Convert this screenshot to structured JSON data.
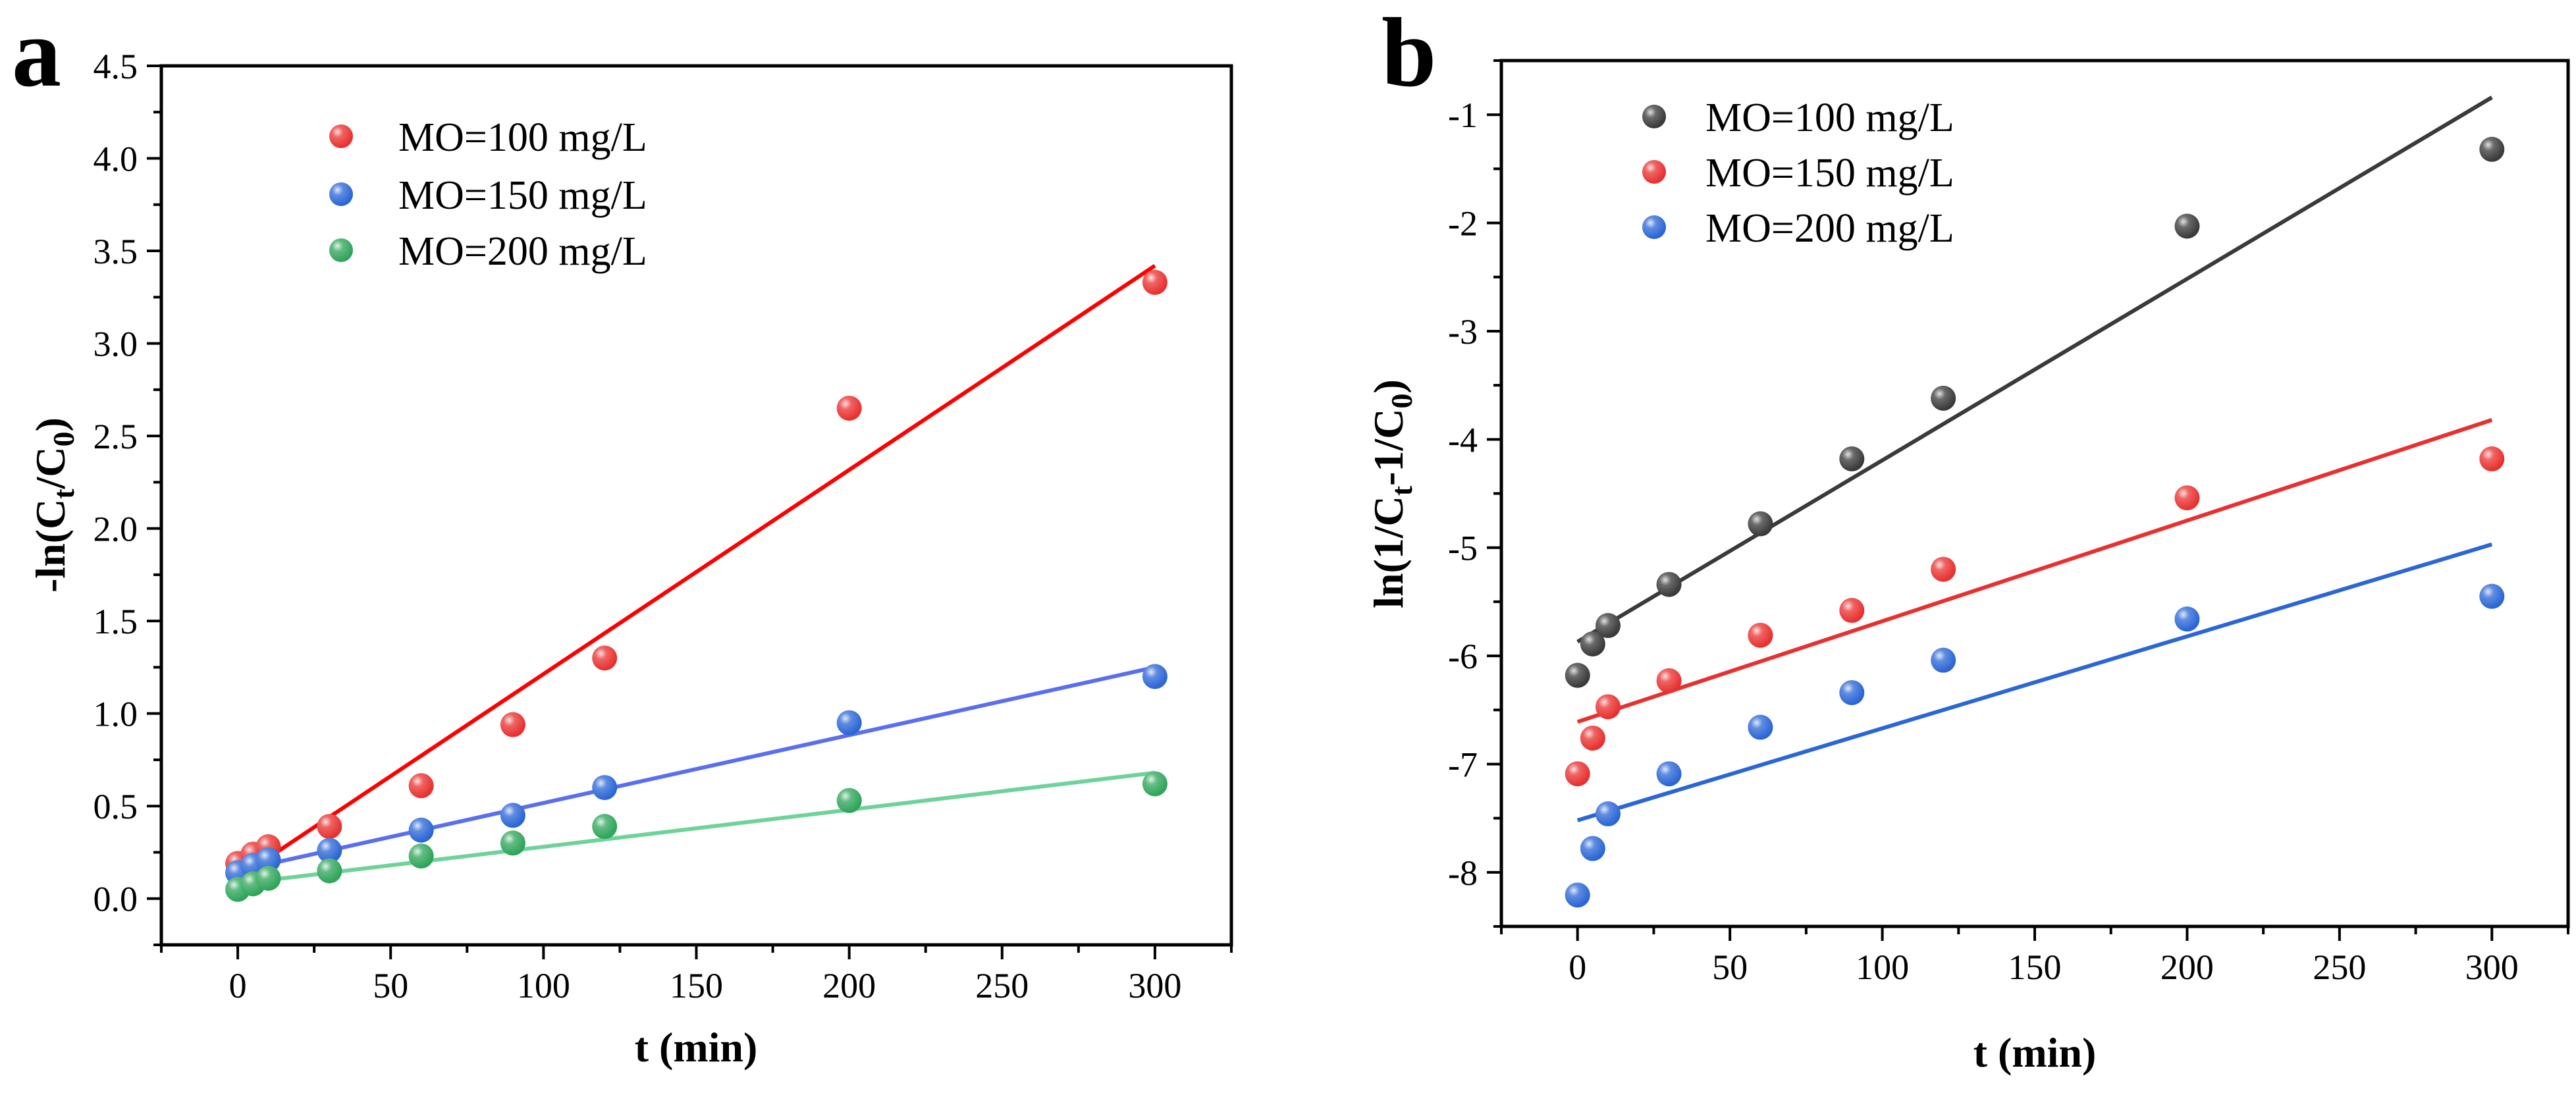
{
  "panels": [
    {
      "panel_label": "a",
      "legend_items": [
        "MO=100 mg/L",
        "MO=150 mg/L",
        "MO=200 mg/L"
      ]
    },
    {
      "panel_label": "b",
      "legend_items": [
        "MO=100 mg/L",
        "MO=150 mg/L",
        "MO=200 mg/L"
      ]
    }
  ],
  "chart_data": [
    {
      "type": "scatter",
      "title": "",
      "xlabel": "t (min)",
      "ylabel": "-ln(Ct/C0)",
      "ylabel_parts": {
        "pre": "-ln(C",
        "sub1": "t",
        "mid": "/C",
        "sub2": "0",
        "post": ")"
      },
      "xlim": [
        -25,
        325
      ],
      "ylim": [
        -0.25,
        4.5
      ],
      "xticks": [
        0,
        50,
        100,
        150,
        200,
        250,
        300
      ],
      "xtick_labels": [
        "0",
        "50",
        "100",
        "150",
        "200",
        "250",
        "300"
      ],
      "yticks": [
        0.0,
        0.5,
        1.0,
        1.5,
        2.0,
        2.5,
        3.0,
        3.5,
        4.0,
        4.5
      ],
      "ytick_labels": [
        "0.0",
        "0.5",
        "1.0",
        "1.5",
        "2.0",
        "2.5",
        "3.0",
        "3.5",
        "4.0",
        "4.5"
      ],
      "legend_position": "top-left",
      "grid": false,
      "series": [
        {
          "name": "MO=100 mg/L",
          "color": "#e8312f",
          "fit_color": "#ff0000",
          "x": [
            0,
            5,
            10,
            30,
            60,
            90,
            120,
            200,
            300
          ],
          "y": [
            0.19,
            0.24,
            0.28,
            0.39,
            0.61,
            0.94,
            1.3,
            2.65,
            3.33
          ],
          "fit": [
            [
              0,
              0.11
            ],
            [
              300,
              3.42
            ]
          ]
        },
        {
          "name": "MO=150 mg/L",
          "color": "#2b66d6",
          "fit_color": "#5a6ef0",
          "x": [
            0,
            5,
            10,
            30,
            60,
            90,
            120,
            200,
            300
          ],
          "y": [
            0.14,
            0.18,
            0.21,
            0.26,
            0.37,
            0.45,
            0.6,
            0.95,
            1.2
          ],
          "fit": [
            [
              0,
              0.15
            ],
            [
              300,
              1.25
            ]
          ]
        },
        {
          "name": "MO=200 mg/L",
          "color": "#2fa55a",
          "fit_color": "#6ed39a",
          "x": [
            0,
            5,
            10,
            30,
            60,
            90,
            120,
            200,
            300
          ],
          "y": [
            0.05,
            0.08,
            0.11,
            0.15,
            0.23,
            0.3,
            0.39,
            0.53,
            0.62
          ],
          "fit": [
            [
              0,
              0.08
            ],
            [
              300,
              0.68
            ]
          ]
        }
      ]
    },
    {
      "type": "scatter",
      "title": "",
      "xlabel": "t (min)",
      "ylabel": "ln(1/Ct-1/C0)",
      "ylabel_parts": {
        "pre": "ln(1/C",
        "sub1": "t",
        "mid": "-1/C",
        "sub2": "0",
        "post": ")"
      },
      "xlim": [
        -25,
        325
      ],
      "ylim": [
        -8.5,
        -0.5
      ],
      "xticks": [
        0,
        50,
        100,
        150,
        200,
        250,
        300
      ],
      "xtick_labels": [
        "0",
        "50",
        "100",
        "150",
        "200",
        "250",
        "300"
      ],
      "yticks": [
        -8,
        -7,
        -6,
        -5,
        -4,
        -3,
        -2,
        -1
      ],
      "ytick_labels": [
        "-8",
        "-7",
        "-6",
        "-5",
        "-4",
        "-3",
        "-2",
        "-1"
      ],
      "legend_position": "top-left",
      "grid": false,
      "series": [
        {
          "name": "MO=100 mg/L",
          "color": "#3a3a3a",
          "fit_color": "#3a3a3a",
          "x": [
            0,
            5,
            10,
            30,
            60,
            90,
            120,
            200,
            300
          ],
          "y": [
            -6.18,
            -5.89,
            -5.72,
            -5.34,
            -4.78,
            -4.18,
            -3.62,
            -2.03,
            -1.32
          ],
          "fit": [
            [
              0,
              -5.87
            ],
            [
              300,
              -0.84
            ]
          ]
        },
        {
          "name": "MO=150 mg/L",
          "color": "#e8312f",
          "fit_color": "#e8312f",
          "x": [
            0,
            5,
            10,
            30,
            60,
            90,
            120,
            200,
            300
          ],
          "y": [
            -7.09,
            -6.76,
            -6.47,
            -6.23,
            -5.81,
            -5.58,
            -5.2,
            -4.54,
            -4.18
          ],
          "fit": [
            [
              0,
              -6.61
            ],
            [
              300,
              -3.82
            ]
          ]
        },
        {
          "name": "MO=200 mg/L",
          "color": "#2b66d6",
          "fit_color": "#2b66d6",
          "x": [
            0,
            5,
            10,
            30,
            60,
            90,
            120,
            200,
            300
          ],
          "y": [
            -8.21,
            -7.78,
            -7.46,
            -7.09,
            -6.66,
            -6.34,
            -6.04,
            -5.66,
            -5.45
          ],
          "fit": [
            [
              0,
              -7.52
            ],
            [
              300,
              -4.97
            ]
          ]
        }
      ]
    }
  ]
}
